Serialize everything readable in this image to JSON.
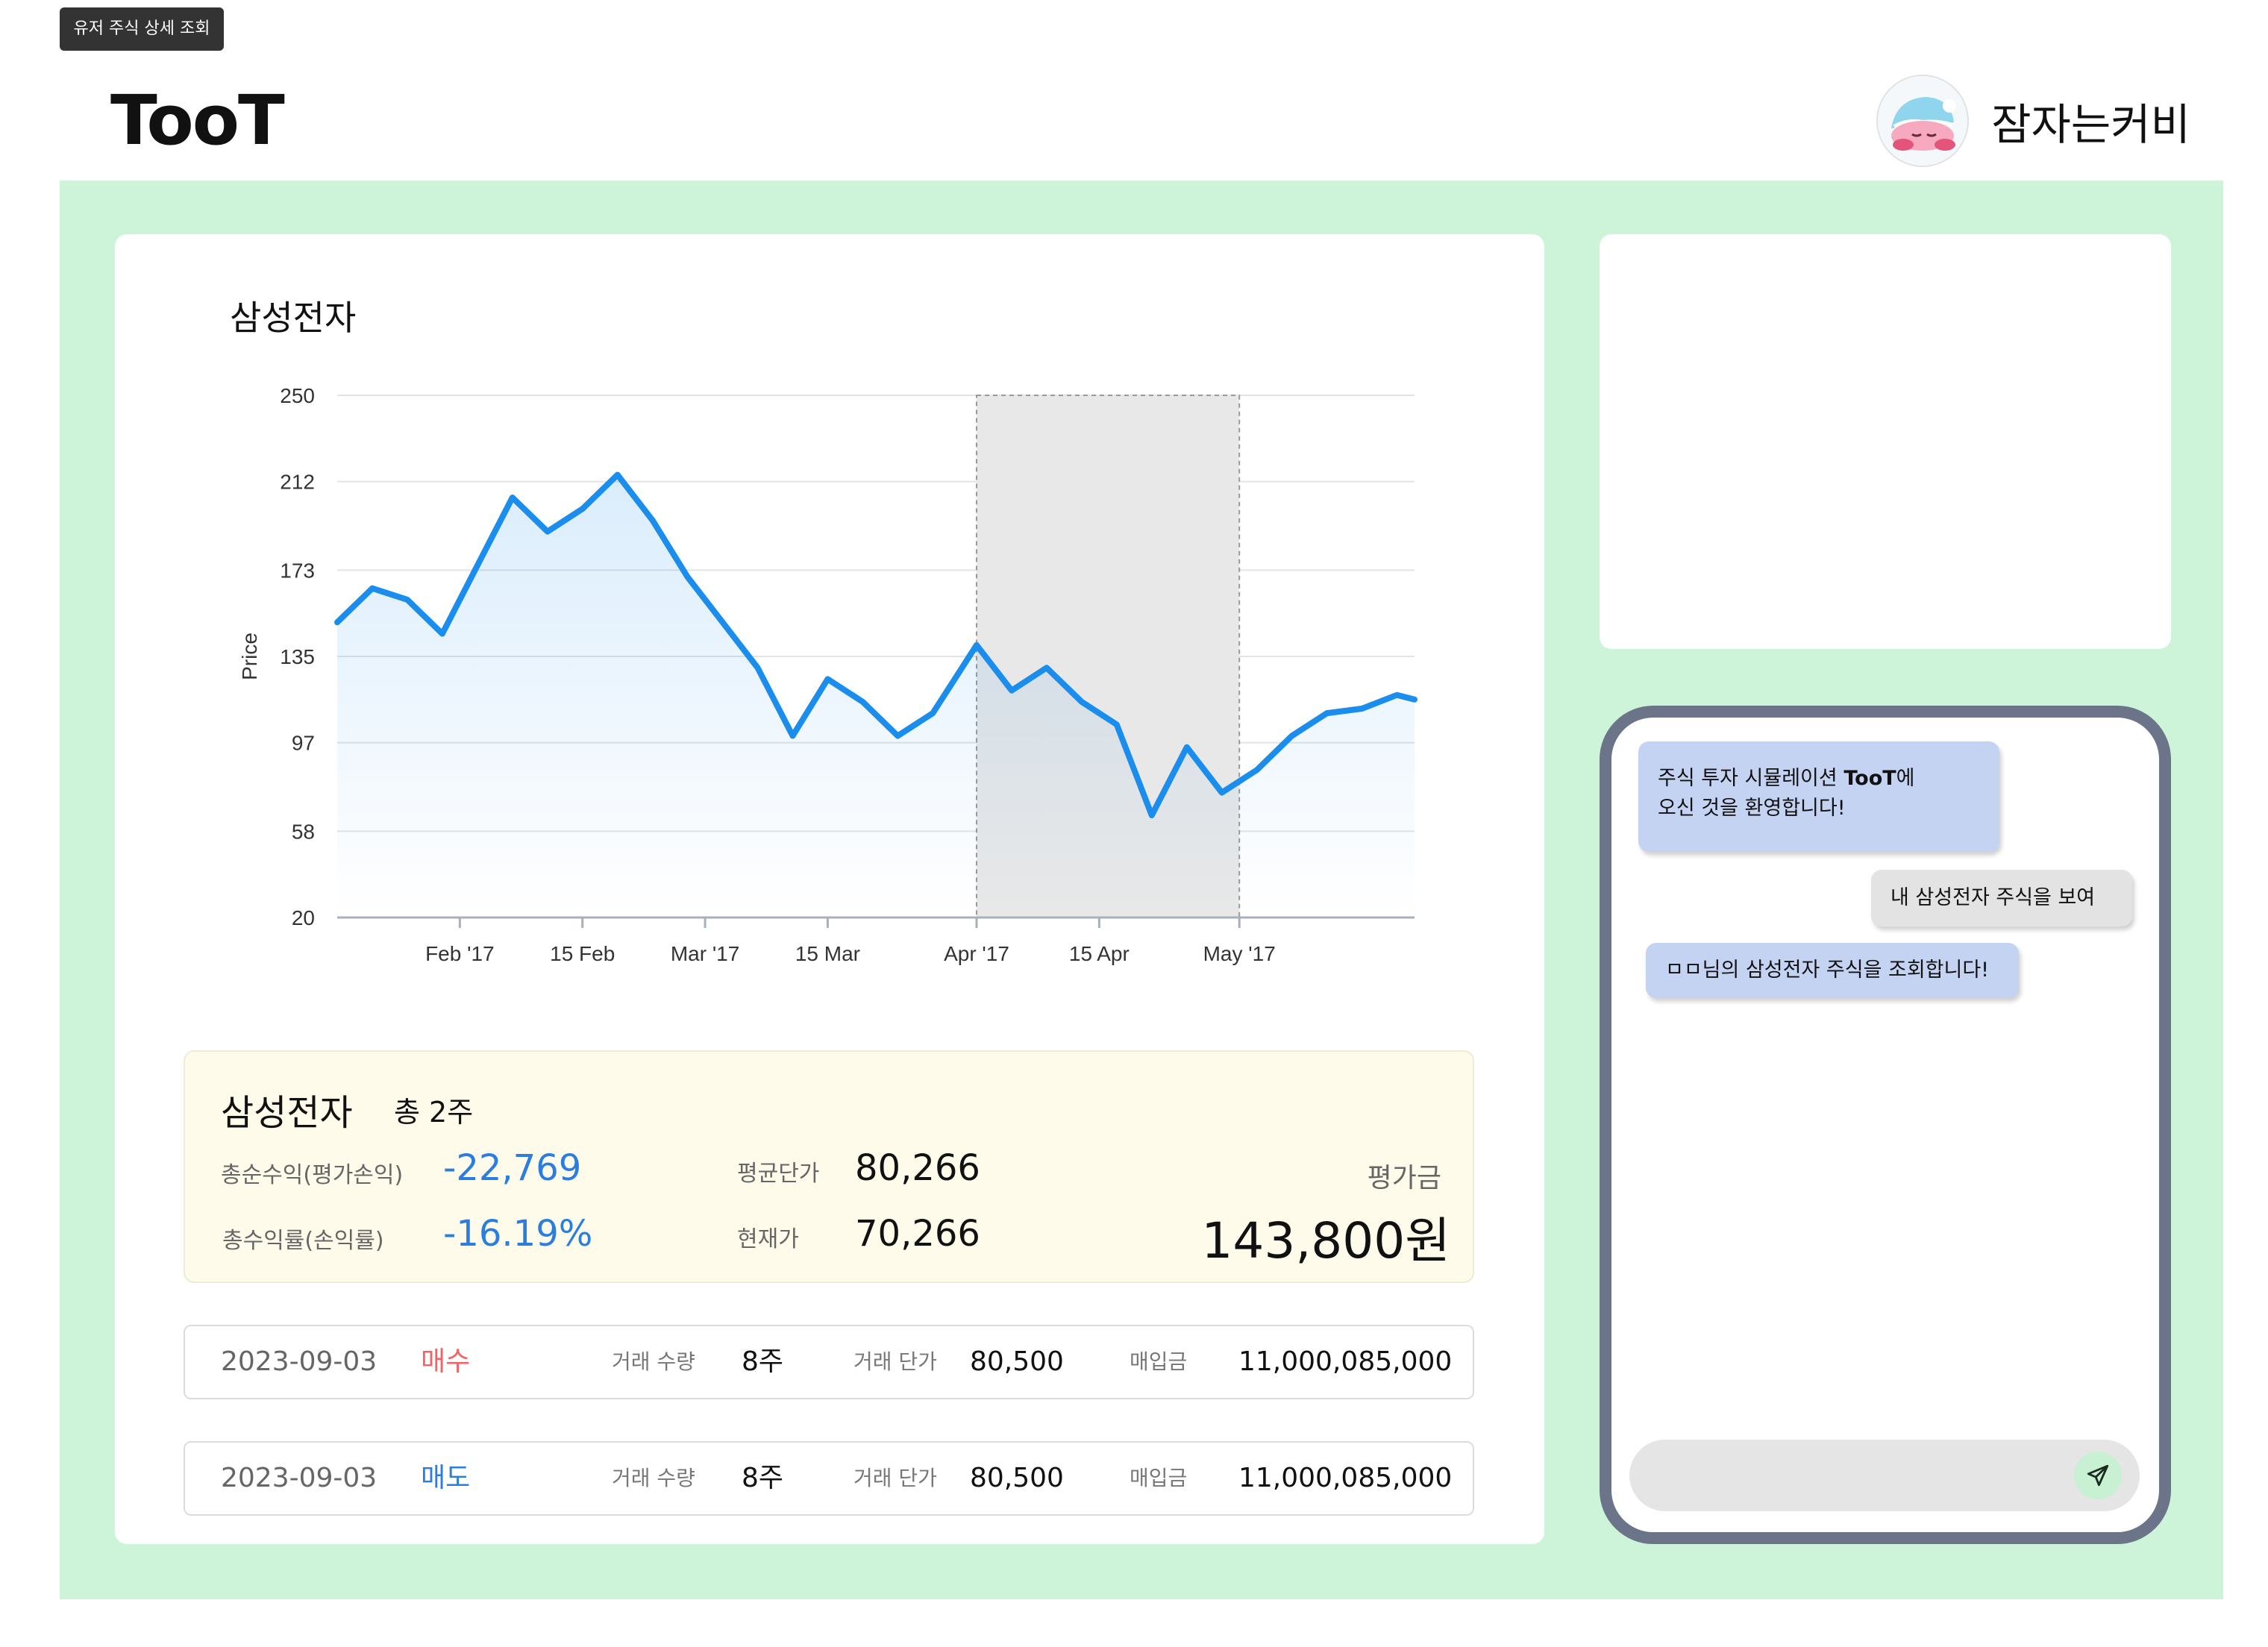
{
  "page_tag": "유저 주식 상세 조회",
  "header": {
    "logo": "TooT",
    "user_name": "잠자는커비",
    "avatar_icon": "sleeping-kirby-avatar"
  },
  "stock": {
    "title": "삼성전자"
  },
  "chart_data": {
    "type": "area",
    "ylabel": "Price",
    "yticks": [
      20,
      58,
      97,
      135,
      173,
      212,
      250
    ],
    "ylim": [
      20,
      250
    ],
    "xticks": [
      "Feb '17",
      "15 Feb",
      "Mar '17",
      "15 Mar",
      "Apr '17",
      "15 Apr",
      "May '17"
    ],
    "xlim": [
      "2017-01-18",
      "2017-05-21"
    ],
    "series": [
      {
        "x": [
          "2017-01-18",
          "2017-01-22",
          "2017-01-26",
          "2017-01-30",
          "2017-02-03",
          "2017-02-07",
          "2017-02-11",
          "2017-02-15",
          "2017-02-19",
          "2017-02-23",
          "2017-02-27",
          "2017-03-03",
          "2017-03-07",
          "2017-03-11",
          "2017-03-15",
          "2017-03-19",
          "2017-03-23",
          "2017-03-27",
          "2017-04-01",
          "2017-04-05",
          "2017-04-09",
          "2017-04-13",
          "2017-04-17",
          "2017-04-21",
          "2017-04-25",
          "2017-04-29",
          "2017-05-03",
          "2017-05-07",
          "2017-05-11",
          "2017-05-15",
          "2017-05-19",
          "2017-05-21"
        ],
        "y": [
          150,
          165,
          160,
          145,
          175,
          205,
          190,
          200,
          215,
          195,
          170,
          150,
          130,
          100,
          125,
          115,
          100,
          110,
          140,
          120,
          130,
          115,
          105,
          65,
          95,
          75,
          85,
          100,
          110,
          112,
          118,
          116
        ]
      }
    ],
    "highlight_range": [
      "2017-04-01",
      "2017-05-01"
    ],
    "line_color": "#1a8ded",
    "highlight_color": "#e8e8e8"
  },
  "summary": {
    "name": "삼성전자",
    "count": "총 2주",
    "net_profit_label": "총순수익(평가손익)",
    "net_profit_value": "-22,769",
    "return_rate_label": "총수익률(손익률)",
    "return_rate_value": "-16.19%",
    "avg_price_label": "평균단가",
    "avg_price_value": "80,266",
    "cur_price_label": "현재가",
    "cur_price_value": "70,266",
    "eval_label": "평가금",
    "eval_value": "143,800원"
  },
  "trades": [
    {
      "date": "2023-09-03",
      "type": "매수",
      "type_color": "#f26464",
      "qty_label": "거래 수량",
      "qty": "8주",
      "price_label": "거래 단가",
      "price": "80,500",
      "amount_label": "매입금",
      "amount": "11,000,085,000"
    },
    {
      "date": "2023-09-03",
      "type": "매도",
      "type_color": "#2b7de0",
      "qty_label": "거래 수량",
      "qty": "8주",
      "price_label": "거래 단가",
      "price": "80,500",
      "amount_label": "매입금",
      "amount": "11,000,085,000"
    }
  ],
  "chat": {
    "messages": [
      {
        "from": "bot",
        "text_before": "주식 투자 시뮬레이션 ",
        "text_bold": "TooT",
        "text_after": "에",
        "line2": "오신 것을 환영합니다!"
      },
      {
        "from": "me",
        "text": "내 삼성전자 주식을 보여줘"
      },
      {
        "from": "bot",
        "text": "ㅁㅁ님의 삼성전자 주식을 조회합니다!"
      }
    ],
    "input_placeholder": "",
    "send_icon": "paper-plane-icon"
  }
}
